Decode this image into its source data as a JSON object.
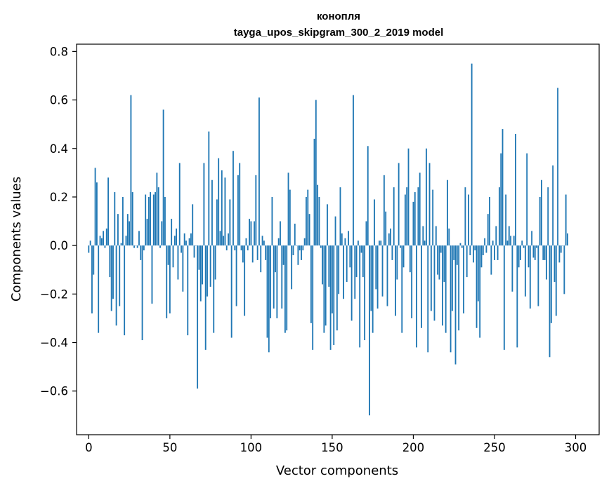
{
  "chart_data": {
    "type": "bar",
    "title": "конопля",
    "subtitle": "tayga_upos_skipgram_300_2_2019 model",
    "xlabel": "Vector components",
    "ylabel": "Components values",
    "xlim": [
      -7.5,
      314.5
    ],
    "ylim": [
      -0.78,
      0.83
    ],
    "xticks": [
      0,
      50,
      100,
      150,
      200,
      250,
      300
    ],
    "xtick_labels": [
      "0",
      "50",
      "100",
      "150",
      "200",
      "250",
      "300"
    ],
    "yticks": [
      -0.6,
      -0.4,
      -0.2,
      0.0,
      0.2,
      0.4,
      0.6,
      0.8
    ],
    "ytick_labels": [
      "−0.6",
      "−0.4",
      "−0.2",
      "0.0",
      "0.2",
      "0.4",
      "0.6",
      "0.8"
    ],
    "bar_color": "#1f77b4",
    "grid": false,
    "values": [
      -0.03,
      0.02,
      -0.28,
      -0.12,
      0.32,
      0.26,
      -0.36,
      0.04,
      0.03,
      0.06,
      -0.01,
      0.07,
      0.28,
      -0.13,
      -0.27,
      -0.22,
      0.22,
      -0.33,
      0.13,
      -0.25,
      0.01,
      0.2,
      -0.37,
      0.04,
      0.13,
      0.1,
      0.62,
      0.22,
      -0.01,
      0.0,
      -0.01,
      0.06,
      -0.06,
      -0.39,
      -0.02,
      0.21,
      0.11,
      0.2,
      0.22,
      -0.24,
      0.21,
      0.22,
      0.3,
      0.24,
      -0.01,
      0.1,
      0.56,
      0.2,
      -0.3,
      -0.08,
      -0.28,
      0.11,
      -0.09,
      0.04,
      0.07,
      -0.14,
      0.34,
      -0.03,
      -0.19,
      0.05,
      0.02,
      -0.37,
      0.03,
      0.05,
      0.17,
      -0.05,
      0.0,
      -0.59,
      -0.1,
      -0.23,
      -0.16,
      0.34,
      -0.43,
      -0.21,
      0.47,
      -0.17,
      0.27,
      -0.36,
      -0.14,
      0.19,
      0.36,
      0.06,
      0.31,
      0.04,
      0.28,
      -0.02,
      0.05,
      0.19,
      -0.38,
      0.39,
      -0.02,
      -0.25,
      0.29,
      0.34,
      -0.02,
      -0.07,
      -0.29,
      0.03,
      -0.02,
      0.11,
      0.1,
      -0.07,
      0.1,
      0.29,
      -0.06,
      0.61,
      -0.11,
      0.04,
      0.02,
      -0.06,
      -0.38,
      -0.44,
      -0.3,
      0.2,
      -0.26,
      -0.11,
      -0.3,
      0.03,
      0.1,
      -0.26,
      -0.08,
      -0.36,
      -0.35,
      0.3,
      0.23,
      -0.18,
      -0.04,
      0.09,
      0.0,
      -0.08,
      -0.02,
      -0.06,
      -0.02,
      0.03,
      0.2,
      0.23,
      0.13,
      -0.32,
      -0.43,
      0.44,
      0.6,
      0.25,
      0.2,
      -0.01,
      -0.16,
      -0.36,
      -0.33,
      0.17,
      -0.17,
      -0.43,
      -0.28,
      -0.41,
      0.12,
      -0.35,
      -0.2,
      0.24,
      0.05,
      -0.22,
      0.03,
      -0.15,
      0.06,
      -0.09,
      -0.31,
      0.62,
      -0.22,
      -0.13,
      0.02,
      -0.42,
      -0.03,
      -0.13,
      -0.39,
      0.1,
      0.41,
      -0.7,
      -0.27,
      -0.36,
      0.19,
      -0.18,
      -0.26,
      0.02,
      0.02,
      -0.21,
      0.29,
      0.14,
      -0.25,
      0.05,
      0.07,
      -0.06,
      0.24,
      -0.29,
      -0.14,
      0.34,
      -0.01,
      -0.36,
      -0.09,
      0.21,
      0.24,
      0.4,
      -0.11,
      -0.3,
      0.18,
      0.22,
      -0.42,
      0.24,
      0.3,
      -0.34,
      0.08,
      0.02,
      0.4,
      -0.44,
      0.34,
      -0.27,
      0.23,
      -0.31,
      0.08,
      -0.12,
      -0.14,
      -0.03,
      -0.33,
      -0.15,
      -0.36,
      0.27,
      0.07,
      -0.44,
      -0.27,
      -0.06,
      -0.49,
      -0.08,
      -0.35,
      0.01,
      -0.01,
      -0.28,
      0.24,
      -0.13,
      0.21,
      -0.04,
      0.75,
      -0.07,
      -0.02,
      -0.34,
      -0.23,
      -0.38,
      -0.09,
      -0.04,
      0.03,
      -0.03,
      0.13,
      0.2,
      -0.12,
      0.02,
      -0.06,
      0.08,
      -0.06,
      0.24,
      0.38,
      0.48,
      -0.43,
      0.21,
      0.02,
      0.08,
      0.04,
      -0.19,
      0.04,
      0.46,
      -0.42,
      -0.09,
      -0.06,
      0.02,
      -0.01,
      -0.21,
      0.38,
      -0.09,
      -0.26,
      0.06,
      -0.05,
      -0.06,
      -0.01,
      -0.25,
      0.2,
      0.27,
      -0.06,
      -0.06,
      -0.14,
      0.24,
      -0.46,
      -0.32,
      0.33,
      -0.15,
      -0.29,
      0.65,
      -0.07,
      -0.03,
      0.0,
      -0.2,
      0.21,
      0.05
    ]
  }
}
